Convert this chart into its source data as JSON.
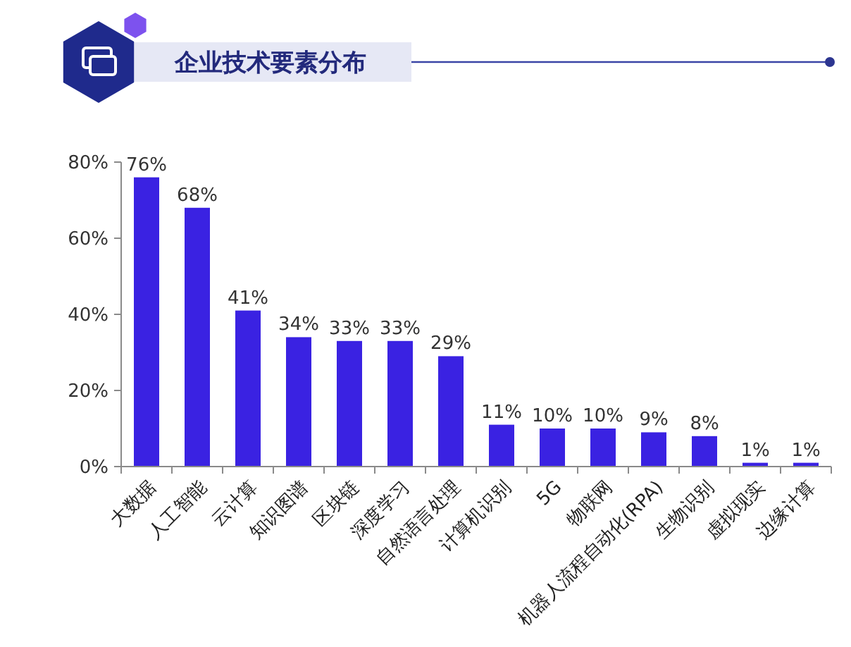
{
  "chart_data": {
    "type": "bar",
    "title": "企业技术要素分布",
    "categories": [
      "大数据",
      "人工智能",
      "云计算",
      "知识图谱",
      "区块链",
      "深度学习",
      "自然语言处理",
      "计算机识别",
      "5G",
      "物联网",
      "机器人流程自动化(RPA)",
      "生物识别",
      "虚拟现实",
      "边缘计算"
    ],
    "values": [
      76,
      68,
      41,
      34,
      33,
      33,
      29,
      11,
      10,
      10,
      9,
      8,
      1,
      1
    ],
    "value_labels": [
      "76%",
      "68%",
      "41%",
      "34%",
      "33%",
      "33%",
      "29%",
      "11%",
      "10%",
      "10%",
      "9%",
      "8%",
      "1%",
      "1%"
    ],
    "color": "#3a22e2",
    "ylim": [
      0,
      80
    ],
    "yticks": [
      {
        "value": 0,
        "label": "0%"
      },
      {
        "value": 20,
        "label": "20%"
      },
      {
        "value": 40,
        "label": "40%"
      },
      {
        "value": 60,
        "label": "60%"
      },
      {
        "value": 80,
        "label": "80%"
      }
    ]
  }
}
